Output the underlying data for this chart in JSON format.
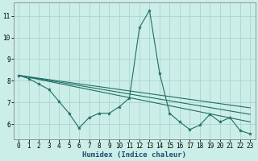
{
  "xlabel": "Humidex (Indice chaleur)",
  "background_color": "#cceee8",
  "grid_color": "#aad4cc",
  "line_color": "#1e6e64",
  "xlim": [
    -0.5,
    23.5
  ],
  "ylim": [
    5.3,
    11.6
  ],
  "yticks": [
    6,
    7,
    8,
    9,
    10,
    11
  ],
  "xticks": [
    0,
    1,
    2,
    3,
    4,
    5,
    6,
    7,
    8,
    9,
    10,
    11,
    12,
    13,
    14,
    15,
    16,
    17,
    18,
    19,
    20,
    21,
    22,
    23
  ],
  "series1": [
    8.25,
    8.1,
    7.85,
    7.6,
    7.05,
    6.5,
    5.82,
    6.3,
    6.5,
    6.5,
    6.8,
    7.2,
    10.45,
    11.25,
    8.35,
    6.5,
    6.1,
    5.75,
    5.95,
    6.45,
    6.1,
    6.3,
    5.7,
    5.55
  ],
  "line1_x": [
    0,
    23
  ],
  "line1_y": [
    8.25,
    6.75
  ],
  "line2_x": [
    0,
    23
  ],
  "line2_y": [
    8.25,
    6.45
  ],
  "line3_x": [
    0,
    23
  ],
  "line3_y": [
    8.25,
    6.1
  ]
}
